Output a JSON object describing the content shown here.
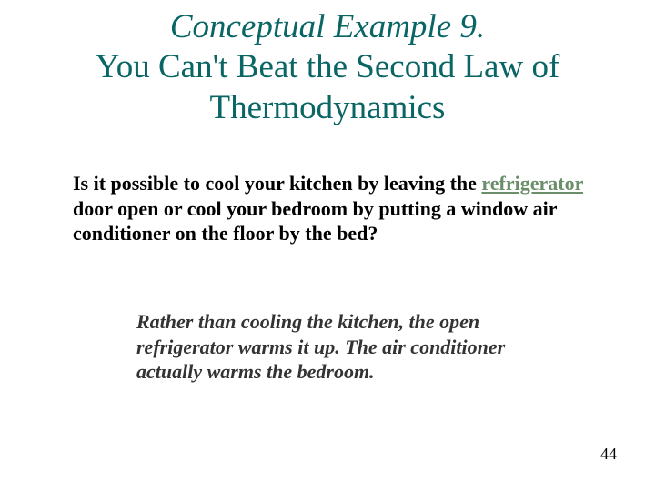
{
  "title": {
    "line1": "Conceptual Example 9.",
    "line2": "You Can't Beat the Second Law of",
    "line3": "Thermodynamics",
    "color": "#0a6565",
    "fontsize": 37,
    "italic_first_line": true
  },
  "question": {
    "pre_link": "Is it possible to cool your kitchen by leaving the ",
    "link_text": "refrigerator",
    "post_link": " door open or cool your bedroom by putting a window air conditioner on the floor by the bed?",
    "link_color": "#6b8e6b",
    "fontsize": 22,
    "bold": true
  },
  "answer": {
    "text": "Rather than cooling the kitchen, the open refrigerator warms it up. The air conditioner actually warms the bedroom.",
    "fontsize": 22,
    "bold": true,
    "italic": true,
    "color": "#333333"
  },
  "page_number": "44",
  "background_color": "#ffffff"
}
